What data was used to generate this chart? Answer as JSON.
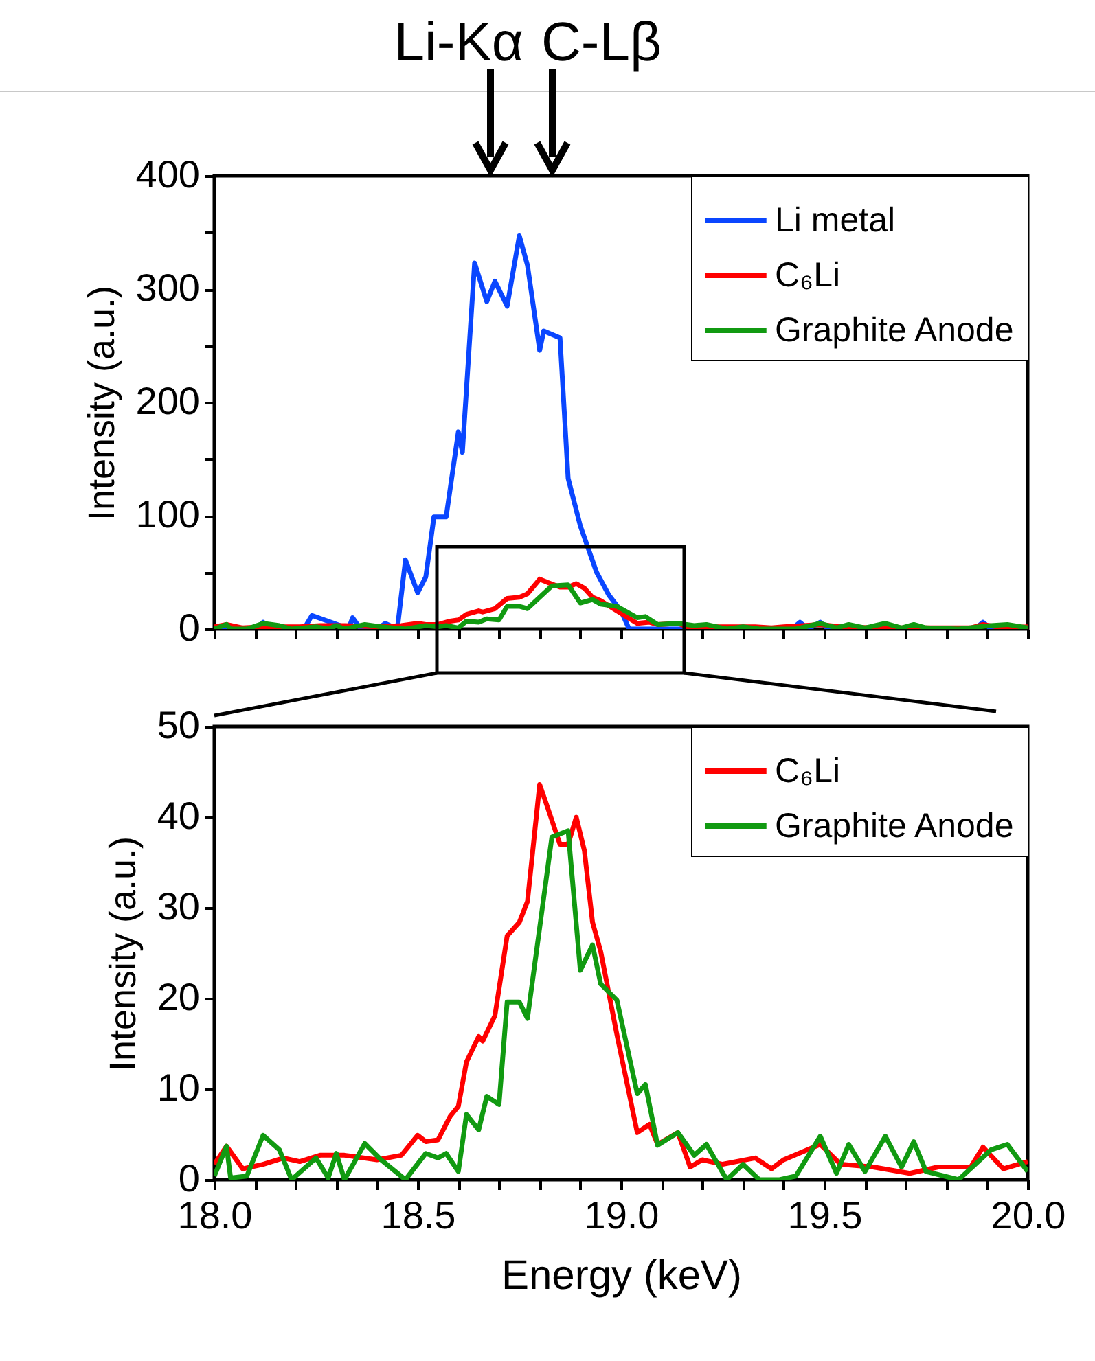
{
  "chart_data": [
    {
      "type": "line",
      "ylabel": "Intensity (a.u.)",
      "xlim": [
        18,
        20
      ],
      "ylim": [
        0,
        400
      ],
      "tick_labels": "y",
      "legend": "top right",
      "xticks": [
        {
          "value": 18,
          "label": null
        },
        {
          "value": 18.1,
          "label": null
        },
        {
          "value": 18.2,
          "label": null
        },
        {
          "value": 18.3,
          "label": null
        },
        {
          "value": 18.4,
          "label": null
        },
        {
          "value": 18.5,
          "label": null
        },
        {
          "value": 18.6,
          "label": null
        },
        {
          "value": 18.7,
          "label": null
        },
        {
          "value": 18.8,
          "label": null
        },
        {
          "value": 18.9,
          "label": null
        },
        {
          "value": 19,
          "label": null
        },
        {
          "value": 19.1,
          "label": null
        },
        {
          "value": 19.2,
          "label": null
        },
        {
          "value": 19.3,
          "label": null
        },
        {
          "value": 19.4,
          "label": null
        },
        {
          "value": 19.5,
          "label": null
        },
        {
          "value": 19.6,
          "label": null
        },
        {
          "value": 19.7,
          "label": null
        },
        {
          "value": 19.8,
          "label": null
        },
        {
          "value": 19.9,
          "label": null
        },
        {
          "value": 20,
          "label": null
        }
      ],
      "yticks": [
        0,
        {
          "value": 50,
          "label": null
        },
        100,
        {
          "value": 150,
          "label": null
        },
        200,
        {
          "value": 250,
          "label": null
        },
        300,
        {
          "value": 350,
          "label": null
        },
        400
      ],
      "annotations": [
        "Li-Kα",
        "C-Lβ"
      ],
      "series": [
        {
          "name": "Li metal",
          "color": "#0a46ff",
          "x": [
            18.0,
            18.1,
            18.12,
            18.14,
            18.22,
            18.24,
            18.31,
            18.33,
            18.34,
            18.36,
            18.4,
            18.42,
            18.45,
            18.47,
            18.5,
            18.52,
            18.54,
            18.57,
            18.6,
            18.61,
            18.64,
            18.67,
            18.69,
            18.72,
            18.75,
            18.77,
            18.8,
            18.81,
            18.85,
            18.87,
            18.9,
            18.94,
            18.97,
            19.0,
            19.02,
            19.42,
            19.44,
            19.46,
            19.49,
            19.51,
            19.87,
            19.89,
            19.91,
            20.0
          ],
          "values": [
            0,
            0,
            6,
            0,
            0,
            12,
            3,
            0,
            10,
            0,
            0,
            5,
            0,
            61,
            32,
            46,
            99,
            99,
            174,
            156,
            323,
            289,
            307,
            285,
            347,
            321,
            246,
            263,
            257,
            133,
            91,
            50,
            30,
            16,
            0,
            0,
            6,
            0,
            6,
            0,
            0,
            6,
            0,
            0
          ]
        },
        {
          "name": "C₆Li",
          "color": "#ff0000",
          "x": [
            18.0,
            18.03,
            18.07,
            18.12,
            18.17,
            18.21,
            18.26,
            18.32,
            18.4,
            18.46,
            18.5,
            18.52,
            18.55,
            18.58,
            18.6,
            18.62,
            18.65,
            18.66,
            18.69,
            18.72,
            18.75,
            18.77,
            18.8,
            18.82,
            18.85,
            18.87,
            18.89,
            18.91,
            18.93,
            18.95,
            18.99,
            19.04,
            19.07,
            19.09,
            19.14,
            19.17,
            19.2,
            19.25,
            19.33,
            19.37,
            19.4,
            19.49,
            19.54,
            19.62,
            19.71,
            19.78,
            19.86,
            19.89,
            19.94,
            20.0
          ],
          "values": [
            2,
            4,
            1,
            2,
            2,
            2,
            3,
            3,
            2,
            3,
            5,
            4,
            4,
            7,
            8,
            13,
            16,
            15,
            18,
            27,
            28,
            31,
            44,
            41,
            37,
            37,
            40,
            36,
            28,
            25,
            16,
            5,
            6,
            4,
            5,
            1,
            2,
            2,
            2,
            1,
            2,
            4,
            2,
            1,
            1,
            1,
            1,
            4,
            1,
            2
          ]
        },
        {
          "name": "Graphite Anode",
          "color": "#119a11",
          "x": [
            18.0,
            18.03,
            18.04,
            18.08,
            18.12,
            18.16,
            18.19,
            18.25,
            18.28,
            18.3,
            18.32,
            18.37,
            18.41,
            18.47,
            18.52,
            18.55,
            18.57,
            18.6,
            18.62,
            18.65,
            18.67,
            18.7,
            18.72,
            18.75,
            18.77,
            18.83,
            18.87,
            18.9,
            18.93,
            18.95,
            18.99,
            19.04,
            19.06,
            19.09,
            19.14,
            19.18,
            19.21,
            19.26,
            19.3,
            19.34,
            19.39,
            19.43,
            19.49,
            19.53,
            19.56,
            19.6,
            19.65,
            19.69,
            19.72,
            19.75,
            19.83,
            19.91,
            19.95,
            20.0
          ],
          "values": [
            0,
            4,
            0,
            0,
            5,
            3,
            0,
            2,
            0,
            3,
            0,
            4,
            2,
            0,
            3,
            2,
            3,
            1,
            7,
            6,
            9,
            8,
            20,
            20,
            18,
            38,
            39,
            23,
            26,
            22,
            20,
            10,
            11,
            4,
            5,
            3,
            4,
            0,
            2,
            0,
            0,
            0,
            5,
            1,
            4,
            1,
            5,
            1,
            4,
            1,
            0,
            3,
            4,
            1
          ]
        }
      ]
    },
    {
      "type": "line",
      "xlabel": "Energy (keV)",
      "ylabel": "Intensity (a.u.)",
      "xlim": [
        18,
        20
      ],
      "ylim": [
        0,
        50
      ],
      "legend": "top right",
      "xticks": [
        {
          "value": 18,
          "label": "18.0"
        },
        {
          "value": 18.1,
          "label": null
        },
        {
          "value": 18.2,
          "label": null
        },
        {
          "value": 18.3,
          "label": null
        },
        {
          "value": 18.4,
          "label": null
        },
        {
          "value": 18.5,
          "label": "18.5"
        },
        {
          "value": 18.6,
          "label": null
        },
        {
          "value": 18.7,
          "label": null
        },
        {
          "value": 18.8,
          "label": null
        },
        {
          "value": 18.9,
          "label": null
        },
        {
          "value": 19,
          "label": "19.0"
        },
        {
          "value": 19.1,
          "label": null
        },
        {
          "value": 19.2,
          "label": null
        },
        {
          "value": 19.3,
          "label": null
        },
        {
          "value": 19.4,
          "label": null
        },
        {
          "value": 19.5,
          "label": "19.5"
        },
        {
          "value": 19.6,
          "label": null
        },
        {
          "value": 19.7,
          "label": null
        },
        {
          "value": 19.8,
          "label": null
        },
        {
          "value": 19.9,
          "label": null
        },
        {
          "value": 20,
          "label": "20.0"
        }
      ],
      "yticks": [
        0,
        10,
        20,
        30,
        40,
        50
      ],
      "series": [
        {
          "name": "C₆Li",
          "color": "#ff0000",
          "x": [
            18.0,
            18.03,
            18.07,
            18.12,
            18.17,
            18.21,
            18.26,
            18.32,
            18.4,
            18.46,
            18.5,
            18.52,
            18.55,
            18.58,
            18.6,
            18.62,
            18.65,
            18.66,
            18.69,
            18.72,
            18.75,
            18.77,
            18.8,
            18.82,
            18.85,
            18.87,
            18.89,
            18.91,
            18.93,
            18.95,
            18.99,
            19.04,
            19.07,
            19.09,
            19.14,
            19.17,
            19.2,
            19.25,
            19.33,
            19.37,
            19.4,
            19.49,
            19.54,
            19.62,
            19.71,
            19.78,
            19.86,
            19.89,
            19.94,
            20.0
          ],
          "values": [
            1.7,
            3.7,
            1.2,
            1.7,
            2.4,
            2.0,
            2.7,
            2.7,
            2.2,
            2.7,
            4.9,
            4.2,
            4.4,
            7.0,
            8.1,
            13,
            15.8,
            15.3,
            18.1,
            26.9,
            28.4,
            30.7,
            43.6,
            41,
            37,
            37,
            40,
            36.3,
            28.4,
            25.2,
            16,
            5.2,
            6.1,
            3.9,
            5.2,
            1.4,
            2.2,
            1.7,
            2.4,
            1.2,
            2.2,
            3.9,
            1.7,
            1.4,
            0.7,
            1.4,
            1.4,
            3.6,
            1.2,
            2.0
          ]
        },
        {
          "name": "Graphite Anode",
          "color": "#119a11",
          "x": [
            18.0,
            18.03,
            18.04,
            18.08,
            18.12,
            18.16,
            18.19,
            18.25,
            18.28,
            18.3,
            18.32,
            18.37,
            18.41,
            18.47,
            18.52,
            18.55,
            18.57,
            18.6,
            18.62,
            18.65,
            18.67,
            18.7,
            18.72,
            18.75,
            18.77,
            18.83,
            18.87,
            18.9,
            18.93,
            18.95,
            18.99,
            19.04,
            19.06,
            19.09,
            19.14,
            19.18,
            19.21,
            19.26,
            19.3,
            19.34,
            19.39,
            19.43,
            19.49,
            19.53,
            19.56,
            19.6,
            19.65,
            19.69,
            19.72,
            19.75,
            19.83,
            19.91,
            19.95,
            20.0
          ],
          "values": [
            0.4,
            3.7,
            0.2,
            0.4,
            4.9,
            3.3,
            0,
            2.4,
            0.2,
            2.9,
            0,
            4,
            2.2,
            0,
            2.9,
            2.4,
            2.9,
            0.9,
            7.2,
            5.5,
            9.2,
            8.3,
            19.6,
            19.6,
            17.8,
            37.8,
            38.5,
            23.1,
            25.9,
            21.6,
            19.8,
            9.5,
            10.5,
            3.8,
            5.2,
            2.7,
            3.9,
            0,
            1.7,
            0,
            0,
            0.4,
            4.8,
            0.7,
            3.9,
            0.9,
            4.8,
            1.4,
            4.2,
            0.9,
            0,
            3.3,
            3.9,
            0.9
          ]
        }
      ]
    }
  ]
}
